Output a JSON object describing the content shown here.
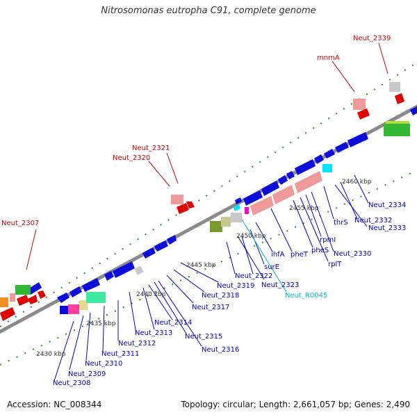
{
  "title": "Nitrosomonas eutropha C91, complete genome",
  "footer": {
    "accession": "Accession: NC_008344",
    "summary": "Topology: circular; Length: 2,661,057 bp; Genes: 2,490"
  },
  "colors": {
    "backbone": "#8a8a8a",
    "cds": "#0b0bdc",
    "rrna": "#ef9a9a",
    "trna": "#00e5ff",
    "misc": "#c8c8c8",
    "red_feature": "#e00000",
    "label_red": "#d00000",
    "label_blue": "#0000c0",
    "label_cyan": "#00b8d0"
  },
  "kbp_labels": [
    "2430 kbp",
    "2435 kbp",
    "2440 kbp",
    "2445 kbp",
    "2450 kbp",
    "2455 kbp",
    "2460 kbp"
  ],
  "red_labels": [
    "Neut_2339",
    "mnmA",
    "Neut_2321",
    "Neut_2320",
    "Neut_2307"
  ],
  "blue_labels": [
    "Neut_2334",
    "Neut_2332",
    "Neut_2333",
    "thrS",
    "Neut_2330",
    "rpmI",
    "rplT",
    "pheS",
    "pheT",
    "ihfA",
    "surE",
    "Neut_2322",
    "Neut_2323",
    "Neut_2319",
    "Neut_2318",
    "Neut_2317",
    "Neut_2314",
    "Neut_2313",
    "Neut_2315",
    "Neut_2316",
    "Neut_2312",
    "Neut_2311",
    "Neut_2310",
    "Neut_2309",
    "Neut_2308"
  ],
  "cyan_labels": [
    "Neut_R0045"
  ]
}
